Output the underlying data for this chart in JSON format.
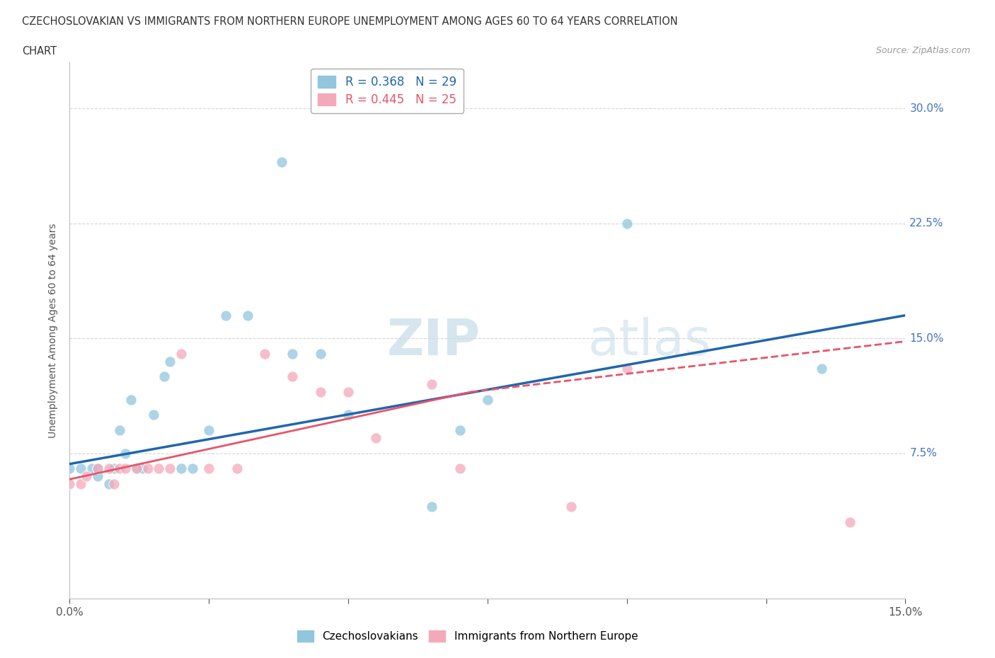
{
  "title_line1": "CZECHOSLOVAKIAN VS IMMIGRANTS FROM NORTHERN EUROPE UNEMPLOYMENT AMONG AGES 60 TO 64 YEARS CORRELATION",
  "title_line2": "CHART",
  "source_text": "Source: ZipAtlas.com",
  "ylabel": "Unemployment Among Ages 60 to 64 years",
  "xlim": [
    0.0,
    0.15
  ],
  "ylim": [
    -0.02,
    0.33
  ],
  "xticks": [
    0.0,
    0.025,
    0.05,
    0.075,
    0.1,
    0.125,
    0.15
  ],
  "xtick_labels": [
    "0.0%",
    "",
    "",
    "",
    "",
    "",
    "15.0%"
  ],
  "ytick_positions": [
    0.075,
    0.15,
    0.225,
    0.3
  ],
  "ytick_labels": [
    "7.5%",
    "15.0%",
    "22.5%",
    "30.0%"
  ],
  "legend_r1": "R = 0.368   N = 29",
  "legend_r2": "R = 0.445   N = 25",
  "blue_color": "#92c5de",
  "pink_color": "#f4a9bb",
  "blue_line_color": "#2166ac",
  "pink_line_color": "#e8546a",
  "watermark_color": "#d8e8f0",
  "blue_scatter_x": [
    0.0,
    0.002,
    0.004,
    0.005,
    0.005,
    0.007,
    0.008,
    0.009,
    0.01,
    0.011,
    0.012,
    0.013,
    0.015,
    0.017,
    0.018,
    0.02,
    0.022,
    0.025,
    0.028,
    0.032,
    0.038,
    0.04,
    0.045,
    0.05,
    0.065,
    0.07,
    0.075,
    0.1,
    0.135
  ],
  "blue_scatter_y": [
    0.065,
    0.065,
    0.065,
    0.06,
    0.065,
    0.055,
    0.065,
    0.09,
    0.075,
    0.11,
    0.065,
    0.065,
    0.1,
    0.125,
    0.135,
    0.065,
    0.065,
    0.09,
    0.165,
    0.165,
    0.265,
    0.14,
    0.14,
    0.1,
    0.04,
    0.09,
    0.11,
    0.225,
    0.13
  ],
  "pink_scatter_x": [
    0.0,
    0.002,
    0.003,
    0.005,
    0.007,
    0.008,
    0.009,
    0.01,
    0.012,
    0.014,
    0.016,
    0.018,
    0.02,
    0.025,
    0.03,
    0.035,
    0.04,
    0.045,
    0.05,
    0.055,
    0.065,
    0.07,
    0.09,
    0.1,
    0.14
  ],
  "pink_scatter_y": [
    0.055,
    0.055,
    0.06,
    0.065,
    0.065,
    0.055,
    0.065,
    0.065,
    0.065,
    0.065,
    0.065,
    0.065,
    0.14,
    0.065,
    0.065,
    0.14,
    0.125,
    0.115,
    0.115,
    0.085,
    0.12,
    0.065,
    0.04,
    0.13,
    0.03
  ],
  "blue_trend_x0": 0.0,
  "blue_trend_x1": 0.15,
  "blue_trend_y0": 0.068,
  "blue_trend_y1": 0.165,
  "pink_trend_solid_x0": 0.0,
  "pink_trend_solid_x1": 0.072,
  "pink_trend_solid_y0": 0.058,
  "pink_trend_solid_y1": 0.115,
  "pink_trend_dash_x0": 0.072,
  "pink_trend_dash_x1": 0.15,
  "pink_trend_dash_y0": 0.115,
  "pink_trend_dash_y1": 0.148,
  "gridline_color": "#cccccc",
  "background_color": "#ffffff"
}
